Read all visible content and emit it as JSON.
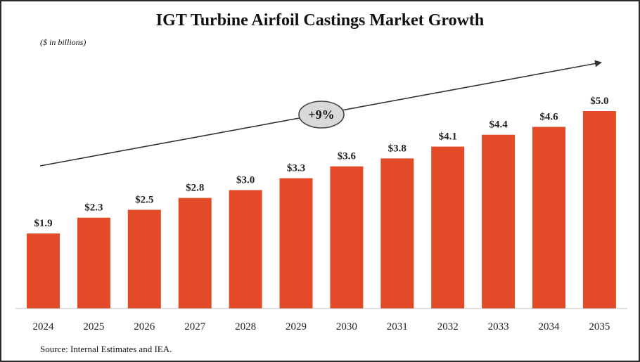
{
  "chart_data": {
    "type": "bar",
    "title": "IGT Turbine Airfoil Castings Market Growth",
    "subtitle": "($ in billions)",
    "categories": [
      "2024",
      "2025",
      "2026",
      "2027",
      "2028",
      "2029",
      "2030",
      "2031",
      "2032",
      "2033",
      "2034",
      "2035"
    ],
    "values": [
      1.9,
      2.3,
      2.5,
      2.8,
      3.0,
      3.3,
      3.6,
      3.8,
      4.1,
      4.4,
      4.6,
      5.0
    ],
    "value_labels": [
      "$1.9",
      "$2.3",
      "$2.5",
      "$2.8",
      "$3.0",
      "$3.3",
      "$3.6",
      "$3.8",
      "$4.1",
      "$4.4",
      "$4.6",
      "$5.0"
    ],
    "annotation": "+9%",
    "ylim": [
      0,
      5.0
    ],
    "grid": false,
    "bar_color": "#e34a27",
    "source": "Source: Internal Estimates and IEA."
  }
}
